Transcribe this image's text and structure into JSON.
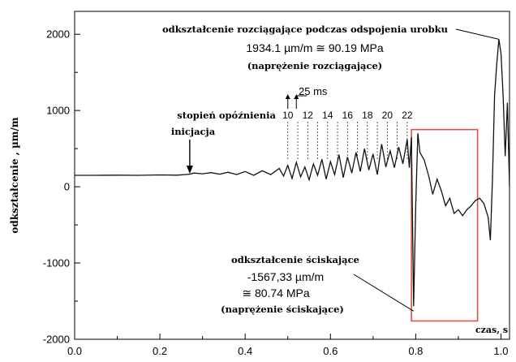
{
  "chart_data": {
    "type": "line",
    "title": "",
    "xlabel": "czas, s",
    "ylabel": "odkształcenie , µm/m",
    "xlim": [
      0.0,
      1.02
    ],
    "ylim": [
      -2000,
      2300
    ],
    "x_ticks": [
      "0.0",
      "0.2",
      "0.4",
      "0.6",
      "0.8",
      "1.0"
    ],
    "y_ticks": [
      "2000",
      "1000",
      "0",
      "-1000",
      "-2000"
    ],
    "grid": false,
    "line_color": "#111111",
    "highlight_color": "#d9533f",
    "series": [
      {
        "points": [
          [
            0.0,
            150
          ],
          [
            0.05,
            150
          ],
          [
            0.1,
            152
          ],
          [
            0.15,
            150
          ],
          [
            0.2,
            155
          ],
          [
            0.24,
            152
          ],
          [
            0.27,
            165
          ],
          [
            0.28,
            180
          ],
          [
            0.3,
            170
          ],
          [
            0.32,
            185
          ],
          [
            0.34,
            165
          ],
          [
            0.36,
            190
          ],
          [
            0.38,
            160
          ],
          [
            0.4,
            200
          ],
          [
            0.42,
            150
          ],
          [
            0.44,
            210
          ],
          [
            0.46,
            160
          ],
          [
            0.48,
            240
          ],
          [
            0.49,
            140
          ],
          [
            0.5,
            280
          ],
          [
            0.51,
            110
          ],
          [
            0.52,
            320
          ],
          [
            0.53,
            130
          ],
          [
            0.54,
            260
          ],
          [
            0.55,
            90
          ],
          [
            0.56,
            300
          ],
          [
            0.57,
            150
          ],
          [
            0.58,
            360
          ],
          [
            0.59,
            100
          ],
          [
            0.6,
            330
          ],
          [
            0.61,
            160
          ],
          [
            0.62,
            420
          ],
          [
            0.63,
            120
          ],
          [
            0.64,
            390
          ],
          [
            0.65,
            180
          ],
          [
            0.66,
            450
          ],
          [
            0.67,
            200
          ],
          [
            0.68,
            500
          ],
          [
            0.69,
            220
          ],
          [
            0.7,
            430
          ],
          [
            0.71,
            160
          ],
          [
            0.72,
            560
          ],
          [
            0.73,
            260
          ],
          [
            0.74,
            470
          ],
          [
            0.75,
            250
          ],
          [
            0.76,
            520
          ],
          [
            0.77,
            300
          ],
          [
            0.78,
            620
          ],
          [
            0.785,
            250
          ],
          [
            0.79,
            650
          ],
          [
            0.795,
            -1567.33
          ],
          [
            0.8,
            -250
          ],
          [
            0.805,
            700
          ],
          [
            0.81,
            450
          ],
          [
            0.82,
            350
          ],
          [
            0.83,
            150
          ],
          [
            0.84,
            -100
          ],
          [
            0.85,
            100
          ],
          [
            0.86,
            -50
          ],
          [
            0.87,
            -250
          ],
          [
            0.88,
            -150
          ],
          [
            0.89,
            -350
          ],
          [
            0.9,
            -300
          ],
          [
            0.91,
            -380
          ],
          [
            0.92,
            -300
          ],
          [
            0.93,
            -250
          ],
          [
            0.94,
            -180
          ],
          [
            0.95,
            -150
          ],
          [
            0.96,
            -220
          ],
          [
            0.97,
            -400
          ],
          [
            0.975,
            -700
          ],
          [
            0.98,
            100
          ],
          [
            0.985,
            1200
          ],
          [
            0.99,
            1600
          ],
          [
            0.995,
            1934.1
          ],
          [
            1.0,
            1750
          ],
          [
            1.005,
            1200
          ],
          [
            1.01,
            400
          ],
          [
            1.015,
            1100
          ],
          [
            1.02,
            0
          ]
        ]
      }
    ],
    "annotations": {
      "tension_title": "odkształcenie rozciągające podczas odspojenia urobku",
      "tension_value": "1934.1 µm/m ≅ 90.19 MPa",
      "tension_note": "(naprężenie rozciągające)",
      "interval": "25 ms",
      "delay_label": "stopień opóźnienia",
      "delay_steps": [
        "10",
        "12",
        "14",
        "16",
        "18",
        "20",
        "22"
      ],
      "initiation": "inicjacja",
      "compression_title": "odkształcenie ściskające",
      "compression_value": "-1567,33 µm/m",
      "compression_mpa": "≅ 80.74 MPa",
      "compression_note": "(naprężenie ściskające)"
    }
  }
}
